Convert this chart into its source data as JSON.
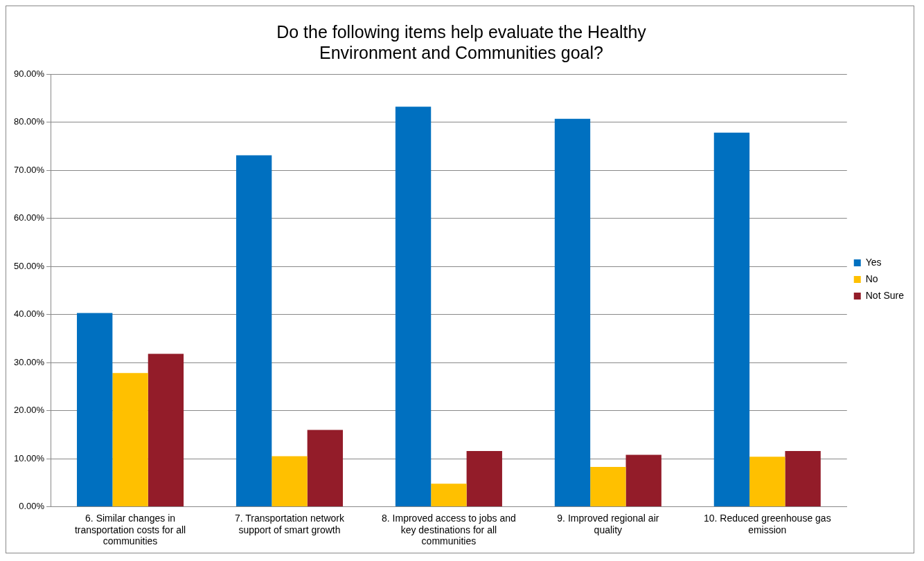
{
  "chart_data": {
    "type": "bar",
    "title": "Do the following items help evaluate the Healthy Environment and Communities goal?",
    "categories": [
      "6. Similar changes in transportation costs for all communities",
      "7. Transportation network support of smart growth",
      "8. Improved access to jobs and key destinations for all communities",
      "9. Improved regional air quality",
      "10. Reduced greenhouse gas emission"
    ],
    "series": [
      {
        "name": "Yes",
        "color": "#0070c0",
        "values": [
          40.3,
          73.1,
          83.2,
          80.7,
          77.8
        ]
      },
      {
        "name": "No",
        "color": "#ffc000",
        "values": [
          27.8,
          10.5,
          4.8,
          8.3,
          10.4
        ]
      },
      {
        "name": "Not Sure",
        "color": "#931c29",
        "values": [
          31.8,
          16.0,
          11.6,
          10.8,
          11.6
        ]
      }
    ],
    "ylim": [
      0,
      90
    ],
    "yticks": [
      {
        "value": 0,
        "label": "0.00%"
      },
      {
        "value": 10,
        "label": "10.00%"
      },
      {
        "value": 20,
        "label": "20.00%"
      },
      {
        "value": 30,
        "label": "30.00%"
      },
      {
        "value": 40,
        "label": "40.00%"
      },
      {
        "value": 50,
        "label": "50.00%"
      },
      {
        "value": 60,
        "label": "60.00%"
      },
      {
        "value": 70,
        "label": "70.00%"
      },
      {
        "value": 80,
        "label": "80.00%"
      },
      {
        "value": 90,
        "label": "90.00%"
      }
    ],
    "grid": "y",
    "legend": "right"
  }
}
